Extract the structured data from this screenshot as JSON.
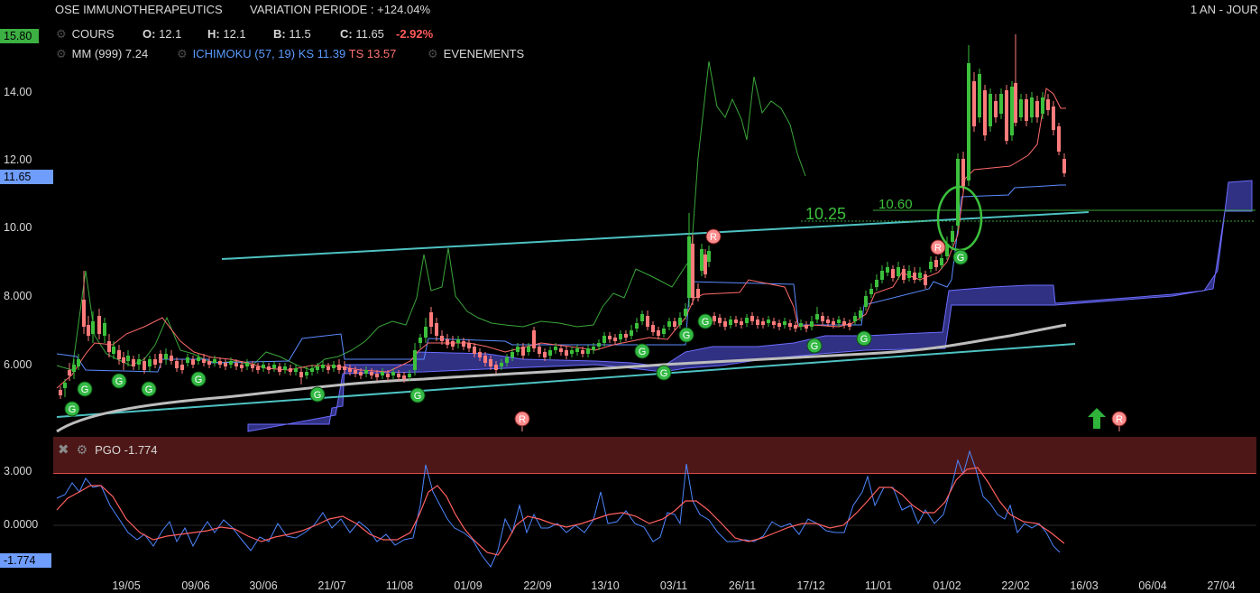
{
  "header": {
    "title": "OSE IMMUNOTHERAPEUTICS",
    "variation": "VARIATION PERIODE : +124.04%",
    "period": "1 AN - JOUR"
  },
  "legend": {
    "cours_label": "COURS",
    "o_label": "O:",
    "o_value": "12.1",
    "h_label": "H:",
    "h_value": "12.1",
    "b_label": "B:",
    "b_value": "11.5",
    "c_label": "C:",
    "c_value": "11.65",
    "change": "-2.92%",
    "mm_label": "MM (999)",
    "mm_value": "7.24",
    "ichimoku_label": "ICHIMOKU (57, 19)",
    "ks_label": "KS 11.39",
    "ts_label": "TS 13.57",
    "events_label": "EVENEMENTS"
  },
  "tags": {
    "high": "15.80",
    "last": "11.65",
    "pgo_last": "-1.774"
  },
  "annotations": {
    "level1": "10.25",
    "level2": "10.60"
  },
  "markers": {
    "g": "G",
    "r": "R"
  },
  "pgo": {
    "label": "PGO -1.774"
  },
  "colors": {
    "up": "#3cc03c",
    "down": "#ff7b7b",
    "kijun": "#5b9bff",
    "tenkan": "#ff6a6a",
    "chikou": "#3aa53a",
    "cloud": "#3e3ea0",
    "trend": "#4ec2c2",
    "mm": "#bdbdbd",
    "pgo_band": "#5a1a1a"
  },
  "chart_data": [
    {
      "type": "candlestick",
      "title": "OSE IMMUNOTHERAPEUTICS",
      "ylim": [
        4.6,
        15.8
      ],
      "yticks": [
        "14.00",
        "12.00",
        "10.00",
        "8.000",
        "6.000"
      ],
      "ytick_values": [
        14,
        12,
        10,
        8,
        6
      ],
      "xticks": [
        "19/05",
        "09/06",
        "30/06",
        "21/07",
        "11/08",
        "01/09",
        "22/09",
        "13/10",
        "03/11",
        "26/11",
        "17/12",
        "11/01",
        "01/02",
        "22/02",
        "16/03",
        "06/04",
        "27/04"
      ],
      "last_close": 11.65,
      "mm_999": 7.24,
      "kijun": 11.39,
      "tenkan": 13.57,
      "levels": [
        10.25,
        10.6
      ]
    },
    {
      "type": "line",
      "title": "PGO -1.774",
      "yticks": [
        "3.000",
        "0.0000"
      ],
      "ytick_values": [
        3,
        0
      ],
      "last_value": -1.774
    }
  ]
}
